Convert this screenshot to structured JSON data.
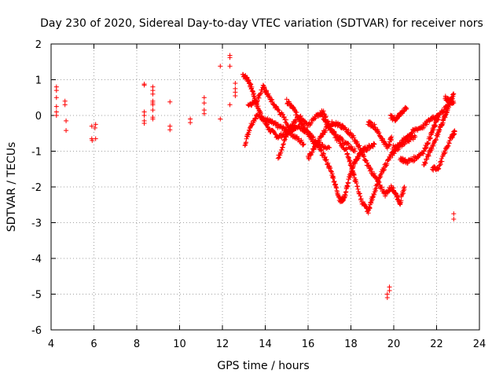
{
  "chart_data": {
    "type": "scatter",
    "title": "Day 230 of 2020, Sidereal Day-to-day VTEC variation (SDTVAR) for receiver nors",
    "xlabel": "GPS time / hours",
    "ylabel": "SDTVAR / TECUs",
    "xlim": [
      4,
      24
    ],
    "ylim": [
      -6,
      2
    ],
    "xticks": [
      4,
      6,
      8,
      10,
      12,
      14,
      16,
      18,
      20,
      22,
      24
    ],
    "yticks": [
      -6,
      -5,
      -4,
      -3,
      -2,
      -1,
      0,
      1,
      2
    ],
    "grid": true,
    "marker": "+",
    "series_color": "#ff0000",
    "isolated_points": [
      [
        4.25,
        0.8
      ],
      [
        4.25,
        0.7
      ],
      [
        4.25,
        0.5
      ],
      [
        4.25,
        0.25
      ],
      [
        4.25,
        0.1
      ],
      [
        4.25,
        0.0
      ],
      [
        4.65,
        0.4
      ],
      [
        4.65,
        0.3
      ],
      [
        4.7,
        -0.15
      ],
      [
        4.7,
        -0.42
      ],
      [
        5.9,
        -0.3
      ],
      [
        5.9,
        -0.65
      ],
      [
        5.92,
        -0.7
      ],
      [
        6.05,
        -0.35
      ],
      [
        6.08,
        -0.25
      ],
      [
        6.08,
        -0.65
      ],
      [
        8.35,
        0.88
      ],
      [
        8.35,
        0.85
      ],
      [
        8.35,
        0.1
      ],
      [
        8.35,
        0.0
      ],
      [
        8.35,
        -0.15
      ],
      [
        8.35,
        -0.22
      ],
      [
        8.75,
        0.8
      ],
      [
        8.75,
        0.7
      ],
      [
        8.75,
        0.6
      ],
      [
        8.75,
        0.4
      ],
      [
        8.75,
        0.35
      ],
      [
        8.75,
        0.3
      ],
      [
        8.75,
        0.15
      ],
      [
        8.75,
        -0.05
      ],
      [
        8.75,
        -0.1
      ],
      [
        9.55,
        0.38
      ],
      [
        9.55,
        -0.3
      ],
      [
        9.55,
        -0.4
      ],
      [
        10.5,
        -0.1
      ],
      [
        10.5,
        -0.2
      ],
      [
        11.15,
        0.5
      ],
      [
        11.15,
        0.35
      ],
      [
        11.15,
        0.15
      ],
      [
        11.15,
        0.05
      ],
      [
        11.9,
        1.38
      ],
      [
        11.9,
        -0.1
      ],
      [
        12.35,
        1.68
      ],
      [
        12.35,
        1.62
      ],
      [
        12.35,
        1.38
      ],
      [
        12.35,
        0.3
      ],
      [
        12.6,
        0.9
      ],
      [
        12.6,
        0.75
      ],
      [
        12.6,
        0.65
      ],
      [
        12.6,
        0.55
      ],
      [
        19.7,
        -5.1
      ],
      [
        19.7,
        -5.0
      ],
      [
        19.8,
        -4.9
      ],
      [
        19.8,
        -4.8
      ],
      [
        22.8,
        -2.75
      ],
      [
        22.8,
        -2.9
      ]
    ],
    "tracks": [
      [
        [
          12.95,
          1.15
        ],
        [
          13.2,
          1.0
        ],
        [
          13.4,
          0.7
        ],
        [
          13.6,
          0.3
        ],
        [
          13.9,
          -0.1
        ],
        [
          14.2,
          -0.4
        ],
        [
          14.6,
          -0.6
        ],
        [
          15.0,
          -0.5
        ],
        [
          15.4,
          -0.3
        ]
      ],
      [
        [
          13.05,
          -0.8
        ],
        [
          13.3,
          -0.3
        ],
        [
          13.6,
          0.0
        ],
        [
          14.0,
          -0.1
        ],
        [
          14.3,
          -0.2
        ],
        [
          14.6,
          -0.3
        ],
        [
          15.0,
          -0.4
        ],
        [
          15.4,
          -0.6
        ],
        [
          15.8,
          -0.8
        ]
      ],
      [
        [
          13.2,
          0.3
        ],
        [
          13.6,
          0.4
        ],
        [
          13.9,
          0.8
        ],
        [
          14.1,
          0.6
        ],
        [
          14.4,
          0.3
        ],
        [
          14.8,
          0.0
        ],
        [
          15.2,
          -0.4
        ],
        [
          15.6,
          -0.3
        ],
        [
          16.0,
          -0.5
        ],
        [
          16.5,
          -0.8
        ],
        [
          17.0,
          -0.9
        ]
      ],
      [
        [
          14.6,
          -1.2
        ],
        [
          14.9,
          -0.7
        ],
        [
          15.2,
          -0.3
        ],
        [
          15.6,
          0.0
        ],
        [
          16.0,
          -0.3
        ],
        [
          16.4,
          0.0
        ],
        [
          16.7,
          0.1
        ],
        [
          17.0,
          -0.3
        ],
        [
          17.4,
          -0.6
        ],
        [
          17.8,
          -0.8
        ],
        [
          18.2,
          -1.0
        ]
      ],
      [
        [
          15.0,
          0.4
        ],
        [
          15.3,
          0.2
        ],
        [
          15.6,
          -0.1
        ],
        [
          15.9,
          -0.4
        ],
        [
          16.2,
          -0.7
        ],
        [
          16.5,
          -0.9
        ],
        [
          16.8,
          -1.2
        ],
        [
          17.1,
          -1.6
        ],
        [
          17.3,
          -2.0
        ],
        [
          17.5,
          -2.4
        ],
        [
          17.7,
          -2.3
        ],
        [
          17.9,
          -1.8
        ],
        [
          18.1,
          -1.4
        ],
        [
          18.3,
          -1.2
        ],
        [
          18.5,
          -1.0
        ],
        [
          18.8,
          -0.9
        ],
        [
          19.1,
          -0.8
        ]
      ],
      [
        [
          16.6,
          0.05
        ],
        [
          17.0,
          -0.35
        ],
        [
          17.4,
          -0.7
        ],
        [
          17.8,
          -1.0
        ],
        [
          18.0,
          -1.4
        ],
        [
          18.2,
          -1.8
        ],
        [
          18.5,
          -2.4
        ],
        [
          18.8,
          -2.7
        ],
        [
          19.0,
          -2.3
        ],
        [
          19.3,
          -1.8
        ],
        [
          19.6,
          -1.4
        ],
        [
          19.9,
          -1.1
        ],
        [
          20.2,
          -0.9
        ],
        [
          20.6,
          -0.7
        ],
        [
          21.0,
          -0.6
        ]
      ],
      [
        [
          16.0,
          -1.2
        ],
        [
          16.3,
          -0.9
        ],
        [
          16.6,
          -0.6
        ],
        [
          16.9,
          -0.3
        ],
        [
          17.2,
          -0.2
        ],
        [
          17.5,
          -0.3
        ],
        [
          17.8,
          -0.4
        ],
        [
          18.1,
          -0.6
        ],
        [
          18.4,
          -0.9
        ],
        [
          18.7,
          -1.3
        ],
        [
          19.0,
          -1.6
        ],
        [
          19.3,
          -1.9
        ],
        [
          19.6,
          -2.2
        ],
        [
          19.9,
          -2.0
        ],
        [
          20.1,
          -2.2
        ],
        [
          20.3,
          -2.45
        ],
        [
          20.5,
          -2.0
        ]
      ],
      [
        [
          18.8,
          -0.2
        ],
        [
          19.1,
          -0.3
        ],
        [
          19.4,
          -0.6
        ],
        [
          19.7,
          -0.9
        ],
        [
          19.9,
          -0.6
        ]
      ],
      [
        [
          19.85,
          -0.05
        ],
        [
          20.1,
          -0.1
        ],
        [
          20.3,
          0.05
        ],
        [
          20.6,
          0.2
        ]
      ],
      [
        [
          19.95,
          -0.9
        ],
        [
          20.3,
          -0.8
        ],
        [
          20.6,
          -0.6
        ],
        [
          21.0,
          -0.4
        ],
        [
          21.4,
          -0.3
        ],
        [
          21.8,
          -0.05
        ],
        [
          22.1,
          -0.05
        ]
      ],
      [
        [
          20.3,
          -1.2
        ],
        [
          20.6,
          -1.3
        ],
        [
          21.0,
          -1.2
        ],
        [
          21.4,
          -1.0
        ],
        [
          21.7,
          -0.6
        ],
        [
          21.9,
          -0.3
        ],
        [
          22.1,
          0.0
        ],
        [
          22.4,
          0.2
        ],
        [
          22.7,
          0.4
        ]
      ],
      [
        [
          21.4,
          -1.4
        ],
        [
          21.7,
          -1.0
        ],
        [
          22.0,
          -0.6
        ],
        [
          22.2,
          -0.3
        ],
        [
          22.4,
          0.0
        ],
        [
          22.6,
          0.3
        ],
        [
          22.8,
          0.6
        ]
      ],
      [
        [
          21.8,
          -1.5
        ],
        [
          22.1,
          -1.45
        ],
        [
          22.4,
          -1.0
        ],
        [
          22.7,
          -0.6
        ],
        [
          22.85,
          -0.45
        ]
      ],
      [
        [
          22.4,
          0.5
        ],
        [
          22.6,
          0.4
        ],
        [
          22.8,
          0.35
        ]
      ]
    ]
  }
}
